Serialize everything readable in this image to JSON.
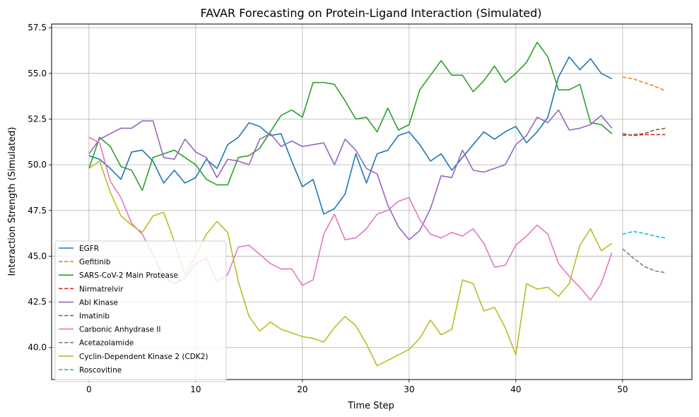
{
  "chart_data": {
    "type": "line",
    "title": "FAVAR Forecasting on Protein-Ligand Interaction (Simulated)",
    "xlabel": "Time Step",
    "ylabel": "Interaction Strength (Simulated)",
    "xlim": [
      -3.5,
      56.5
    ],
    "ylim": [
      38.25,
      57.7
    ],
    "xticks": [
      0,
      10,
      20,
      30,
      40,
      50
    ],
    "yticks": [
      40.0,
      42.5,
      45.0,
      47.5,
      50.0,
      52.5,
      55.0,
      57.5
    ],
    "ytick_labels": [
      "40.0",
      "42.5",
      "45.0",
      "47.5",
      "50.0",
      "52.5",
      "55.0",
      "57.5"
    ],
    "grid": true,
    "legend_position": "lower-left",
    "series": [
      {
        "name": "EGFR",
        "color": "#1f77b4",
        "style": "solid",
        "x_start": 0,
        "values": [
          50.5,
          50.3,
          49.8,
          49.2,
          50.7,
          50.8,
          50.2,
          49.0,
          49.7,
          49.0,
          49.3,
          50.3,
          49.8,
          51.1,
          51.5,
          52.3,
          52.1,
          51.6,
          51.7,
          50.2,
          48.8,
          49.2,
          47.3,
          47.6,
          48.4,
          50.6,
          49.0,
          50.6,
          50.8,
          51.6,
          51.8,
          51.1,
          50.2,
          50.6,
          49.7,
          50.4,
          51.1,
          51.8,
          51.4,
          51.8,
          52.1,
          51.2,
          51.8,
          52.6,
          54.8,
          55.9,
          55.2,
          55.8,
          55.0,
          54.7
        ]
      },
      {
        "name": "Gefitinib",
        "color": "#ff7f0e",
        "style": "dashed",
        "x_start": 50,
        "values": [
          54.8,
          54.7,
          54.5,
          54.3,
          54.05
        ]
      },
      {
        "name": "SARS-CoV-2 Main Protease",
        "color": "#2ca02c",
        "style": "solid",
        "x_start": 0,
        "values": [
          49.8,
          51.5,
          51.0,
          49.9,
          49.7,
          48.6,
          50.4,
          50.6,
          50.8,
          50.4,
          50.0,
          49.2,
          48.9,
          48.9,
          50.4,
          50.5,
          50.9,
          51.8,
          52.7,
          53.0,
          52.6,
          54.5,
          54.5,
          54.4,
          53.5,
          52.5,
          52.6,
          51.8,
          53.1,
          51.9,
          52.2,
          54.1,
          54.9,
          55.7,
          54.9,
          54.9,
          54.0,
          54.6,
          55.4,
          54.5,
          55.0,
          55.6,
          56.7,
          55.9,
          54.1,
          54.1,
          54.4,
          52.3,
          52.2,
          51.7
        ]
      },
      {
        "name": "Nirmatrelvir",
        "color": "#d62728",
        "style": "dashed",
        "x_start": 50,
        "values": [
          51.7,
          51.6,
          51.65,
          51.65,
          51.65
        ]
      },
      {
        "name": "Abl Kinase",
        "color": "#9467bd",
        "style": "solid",
        "x_start": 0,
        "values": [
          50.6,
          51.4,
          51.7,
          52.0,
          52.0,
          52.4,
          52.4,
          50.4,
          50.3,
          51.4,
          50.7,
          50.4,
          49.3,
          50.3,
          50.2,
          50.0,
          51.4,
          51.7,
          51.0,
          51.3,
          51.0,
          51.1,
          51.2,
          50.0,
          51.4,
          50.8,
          49.8,
          49.5,
          47.8,
          46.6,
          45.9,
          46.4,
          47.6,
          49.4,
          49.3,
          50.8,
          49.7,
          49.6,
          49.8,
          50.0,
          51.1,
          51.6,
          52.6,
          52.3,
          53.0,
          51.9,
          52.0,
          52.2,
          52.7,
          52.0
        ]
      },
      {
        "name": "Imatinib",
        "color": "#8c564b",
        "style": "dashed",
        "x_start": 50,
        "values": [
          51.6,
          51.65,
          51.7,
          51.9,
          52.0
        ]
      },
      {
        "name": "Carbonic Anhydrase II",
        "color": "#e377c2",
        "style": "solid",
        "x_start": 0,
        "values": [
          51.5,
          51.2,
          49.1,
          48.2,
          46.8,
          46.2,
          45.1,
          43.8,
          43.5,
          43.8,
          44.6,
          44.9,
          43.6,
          44.0,
          45.5,
          45.6,
          45.1,
          44.6,
          44.3,
          44.3,
          43.4,
          43.7,
          46.2,
          47.3,
          45.9,
          46.0,
          46.5,
          47.3,
          47.5,
          48.0,
          48.2,
          47.0,
          46.2,
          46.0,
          46.3,
          46.1,
          46.5,
          45.7,
          44.4,
          44.5,
          45.6,
          46.1,
          46.7,
          46.2,
          44.6,
          43.9,
          43.3,
          42.6,
          43.5,
          45.2
        ]
      },
      {
        "name": "Acetazolamide",
        "color": "#7f7f7f",
        "style": "dashed",
        "x_start": 50,
        "values": [
          45.4,
          44.9,
          44.45,
          44.2,
          44.1
        ]
      },
      {
        "name": "Cyclin-Dependent Kinase 2 (CDK2)",
        "color": "#bcbd22",
        "style": "solid",
        "x_start": 0,
        "values": [
          49.8,
          50.2,
          48.5,
          47.2,
          46.7,
          46.3,
          47.2,
          47.4,
          45.8,
          44.0,
          45.0,
          46.2,
          46.9,
          46.3,
          43.6,
          41.7,
          40.9,
          41.4,
          41.0,
          40.8,
          40.6,
          40.5,
          40.3,
          41.1,
          41.7,
          41.2,
          40.2,
          39.0,
          39.3,
          39.6,
          39.9,
          40.5,
          41.5,
          40.7,
          41.0,
          43.7,
          43.5,
          42.0,
          42.2,
          41.1,
          39.6,
          43.5,
          43.2,
          43.3,
          42.8,
          43.5,
          45.6,
          46.5,
          45.3,
          45.7
        ]
      },
      {
        "name": "Roscovitine",
        "color": "#17becf",
        "style": "dashed",
        "x_start": 50,
        "values": [
          46.2,
          46.35,
          46.25,
          46.1,
          46.0
        ]
      }
    ]
  }
}
